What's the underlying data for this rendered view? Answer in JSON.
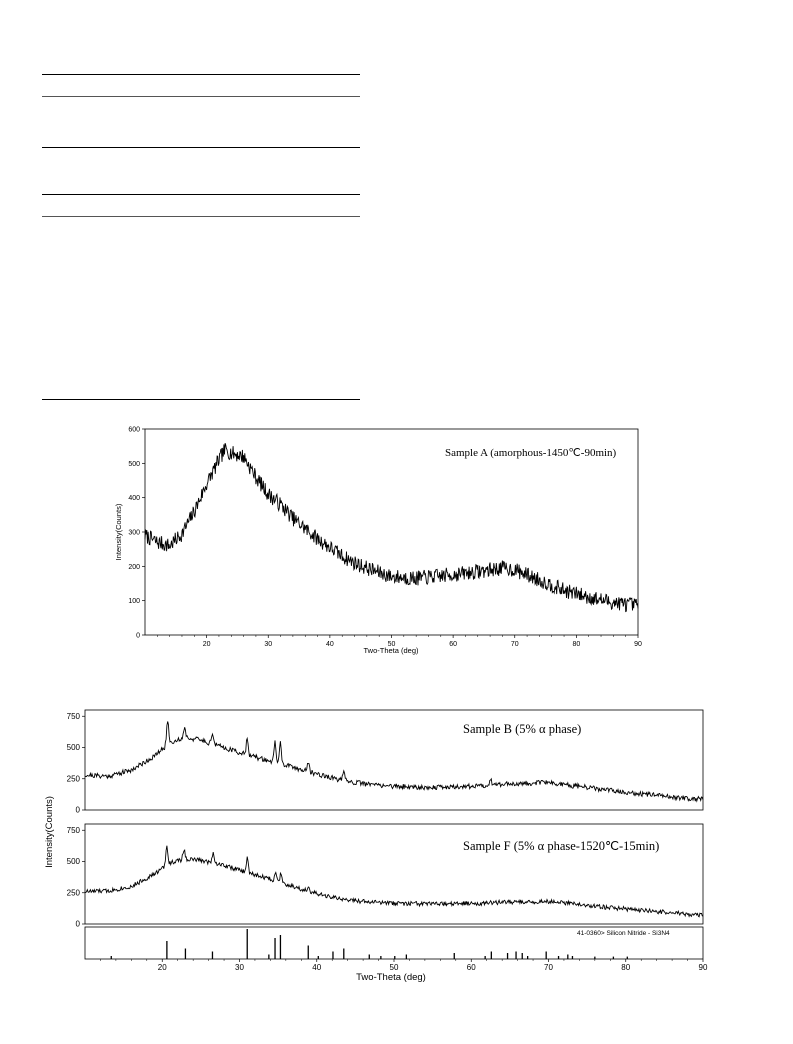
{
  "table_rules": [
    {
      "kind": "thick"
    },
    {
      "kind": "thin"
    },
    {
      "kind": "thick"
    },
    {
      "kind": "thick"
    },
    {
      "kind": "thin"
    },
    {
      "kind": "thick"
    }
  ],
  "chart_data": [
    {
      "type": "line",
      "annotation": "Sample A (amorphous-1450℃-90min)",
      "xlabel": "Two-Theta (deg)",
      "ylabel": "Intensity(Counts)",
      "xlim": [
        10,
        90
      ],
      "ylim": [
        0,
        600
      ],
      "xticks": [
        20,
        30,
        40,
        50,
        60,
        70,
        80,
        90
      ],
      "yticks": [
        0,
        100,
        200,
        300,
        400,
        500,
        600
      ],
      "series": [
        {
          "x": [
            10,
            12,
            14,
            16,
            18,
            20,
            22,
            23,
            24,
            26,
            28,
            30,
            32,
            34,
            36,
            38,
            40,
            42,
            44,
            46,
            48,
            50,
            54,
            58,
            62,
            66,
            68,
            70,
            74,
            78,
            82,
            86,
            90
          ],
          "values": [
            290,
            270,
            260,
            295,
            360,
            440,
            510,
            540,
            530,
            520,
            460,
            410,
            380,
            340,
            310,
            280,
            255,
            230,
            210,
            195,
            182,
            170,
            165,
            172,
            180,
            190,
            195,
            190,
            160,
            130,
            110,
            95,
            85
          ],
          "noise": 22
        }
      ]
    },
    {
      "type": "line",
      "annotation": "Sample B (5% α phase)",
      "ylabel": "Intensity(Counts)",
      "xlim": [
        10,
        90
      ],
      "ylim": [
        0,
        800
      ],
      "yticks": [
        0,
        250,
        500,
        750
      ],
      "series": [
        {
          "x": [
            10,
            13,
            16,
            19,
            21,
            23,
            25,
            28,
            31,
            34,
            37,
            40,
            43,
            46,
            50,
            55,
            60,
            65,
            70,
            75,
            80,
            85,
            90
          ],
          "values": [
            280,
            270,
            320,
            430,
            540,
            580,
            560,
            500,
            440,
            390,
            340,
            290,
            240,
            210,
            190,
            180,
            190,
            210,
            220,
            180,
            140,
            110,
            85
          ],
          "noise": 20,
          "peaks": [
            [
              20.7,
              200
            ],
            [
              22.9,
              90
            ],
            [
              26.5,
              90
            ],
            [
              31.0,
              150
            ],
            [
              34.6,
              160
            ],
            [
              35.3,
              170
            ],
            [
              38.9,
              70
            ],
            [
              43.5,
              60
            ],
            [
              62.5,
              50
            ]
          ]
        }
      ]
    },
    {
      "type": "line",
      "annotation": "Sample F (5% α phase-1520℃-15min)",
      "ylabel": "Intensity(Counts)",
      "xlim": [
        10,
        90
      ],
      "ylim": [
        0,
        800
      ],
      "yticks": [
        0,
        250,
        500,
        750
      ],
      "series": [
        {
          "x": [
            10,
            13,
            16,
            19,
            21,
            23,
            25,
            28,
            31,
            34,
            37,
            40,
            43,
            46,
            50,
            55,
            60,
            65,
            70,
            75,
            80,
            85,
            90
          ],
          "values": [
            260,
            265,
            300,
            400,
            490,
            520,
            510,
            470,
            410,
            360,
            300,
            240,
            200,
            180,
            165,
            160,
            165,
            175,
            180,
            150,
            120,
            95,
            70
          ],
          "noise": 18,
          "peaks": [
            [
              20.6,
              150
            ],
            [
              22.8,
              80
            ],
            [
              26.6,
              90
            ],
            [
              31.0,
              120
            ],
            [
              34.7,
              70
            ],
            [
              35.4,
              80
            ],
            [
              38.9,
              40
            ]
          ]
        }
      ]
    },
    {
      "type": "bar",
      "annotation": "41-0360> Silicon Nitride - Si3N4",
      "xlabel": "Two-Theta (deg)",
      "xlim": [
        10,
        90
      ],
      "xticks": [
        20,
        30,
        40,
        50,
        60,
        70,
        80,
        90
      ],
      "x": [
        13.4,
        20.6,
        23.0,
        26.5,
        31.0,
        33.8,
        34.6,
        35.3,
        38.9,
        40.2,
        42.1,
        43.5,
        46.8,
        48.3,
        50.1,
        51.6,
        57.8,
        61.8,
        62.6,
        64.7,
        65.8,
        66.6,
        67.3,
        69.7,
        71.3,
        72.5,
        73.1,
        76.0,
        78.4,
        80.2
      ],
      "values": [
        10,
        60,
        35,
        25,
        100,
        15,
        70,
        80,
        45,
        10,
        25,
        35,
        15,
        10,
        10,
        15,
        20,
        10,
        25,
        20,
        25,
        20,
        10,
        25,
        10,
        15,
        10,
        8,
        8,
        8
      ]
    }
  ]
}
